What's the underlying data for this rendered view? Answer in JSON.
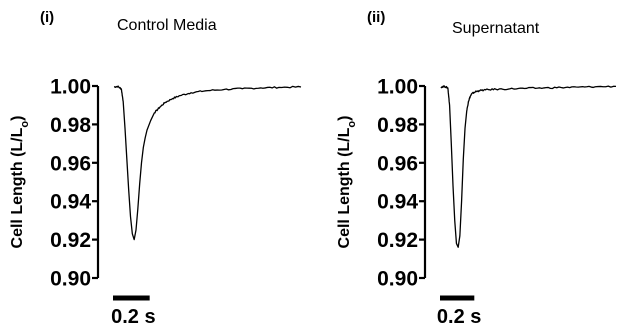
{
  "chart_data": [
    {
      "type": "line",
      "panel_label": "(i)",
      "title": "Control Media",
      "ylabel": "Cell Length (L/L",
      "ylabel_subscript": "o",
      "ylabel_close": ")",
      "ylim": [
        0.9,
        1.0
      ],
      "yticks": [
        {
          "value": 1.0,
          "label": "1.00"
        },
        {
          "value": 0.98,
          "label": "0.98"
        },
        {
          "value": 0.96,
          "label": "0.96"
        },
        {
          "value": 0.94,
          "label": "0.94"
        },
        {
          "value": 0.92,
          "label": "0.92"
        },
        {
          "value": 0.9,
          "label": "0.90"
        }
      ],
      "xlim": [
        0,
        1.02
      ],
      "scale_bar": {
        "length_s": 0.2,
        "label": "0.2 s"
      },
      "series": [
        {
          "x": [
            0,
            0.02,
            0.04,
            0.05,
            0.06,
            0.07,
            0.08,
            0.09,
            0.1,
            0.11,
            0.12,
            0.13,
            0.14,
            0.15,
            0.16,
            0.17,
            0.18,
            0.2,
            0.22,
            0.25,
            0.28,
            0.32,
            0.36,
            0.42,
            0.5,
            0.6,
            0.7,
            0.8,
            0.9,
            1.02
          ],
          "y": [
            0.9995,
            0.9998,
            0.9985,
            0.992,
            0.978,
            0.962,
            0.946,
            0.932,
            0.923,
            0.92,
            0.925,
            0.936,
            0.949,
            0.96,
            0.968,
            0.973,
            0.977,
            0.982,
            0.986,
            0.989,
            0.9915,
            0.9935,
            0.995,
            0.9965,
            0.9975,
            0.9982,
            0.9986,
            0.999,
            0.9993,
            0.9995
          ]
        }
      ]
    },
    {
      "type": "line",
      "panel_label": "(ii)",
      "title": "Supernatant",
      "ylabel": "Cell Length (L/L",
      "ylabel_subscript": "o",
      "ylabel_close": ")",
      "ylim": [
        0.9,
        1.0
      ],
      "yticks": [
        {
          "value": 1.0,
          "label": "1.00"
        },
        {
          "value": 0.98,
          "label": "0.98"
        },
        {
          "value": 0.96,
          "label": "0.96"
        },
        {
          "value": 0.94,
          "label": "0.94"
        },
        {
          "value": 0.92,
          "label": "0.92"
        },
        {
          "value": 0.9,
          "label": "0.90"
        }
      ],
      "xlim": [
        0,
        1.02
      ],
      "scale_bar": {
        "length_s": 0.2,
        "label": "0.2 s"
      },
      "series": [
        {
          "x": [
            0,
            0.02,
            0.04,
            0.05,
            0.06,
            0.07,
            0.08,
            0.09,
            0.1,
            0.11,
            0.12,
            0.13,
            0.14,
            0.15,
            0.16,
            0.17,
            0.18,
            0.2,
            0.22,
            0.26,
            0.32,
            0.4,
            0.5,
            0.6,
            0.7,
            0.8,
            0.9,
            1.02
          ],
          "y": [
            0.9995,
            0.9998,
            0.999,
            0.99,
            0.97,
            0.948,
            0.93,
            0.918,
            0.916,
            0.922,
            0.94,
            0.962,
            0.978,
            0.987,
            0.992,
            0.9945,
            0.996,
            0.997,
            0.9975,
            0.998,
            0.9983,
            0.9985,
            0.9988,
            0.999,
            0.9992,
            0.9994,
            0.9996,
            0.9998
          ]
        }
      ]
    }
  ]
}
